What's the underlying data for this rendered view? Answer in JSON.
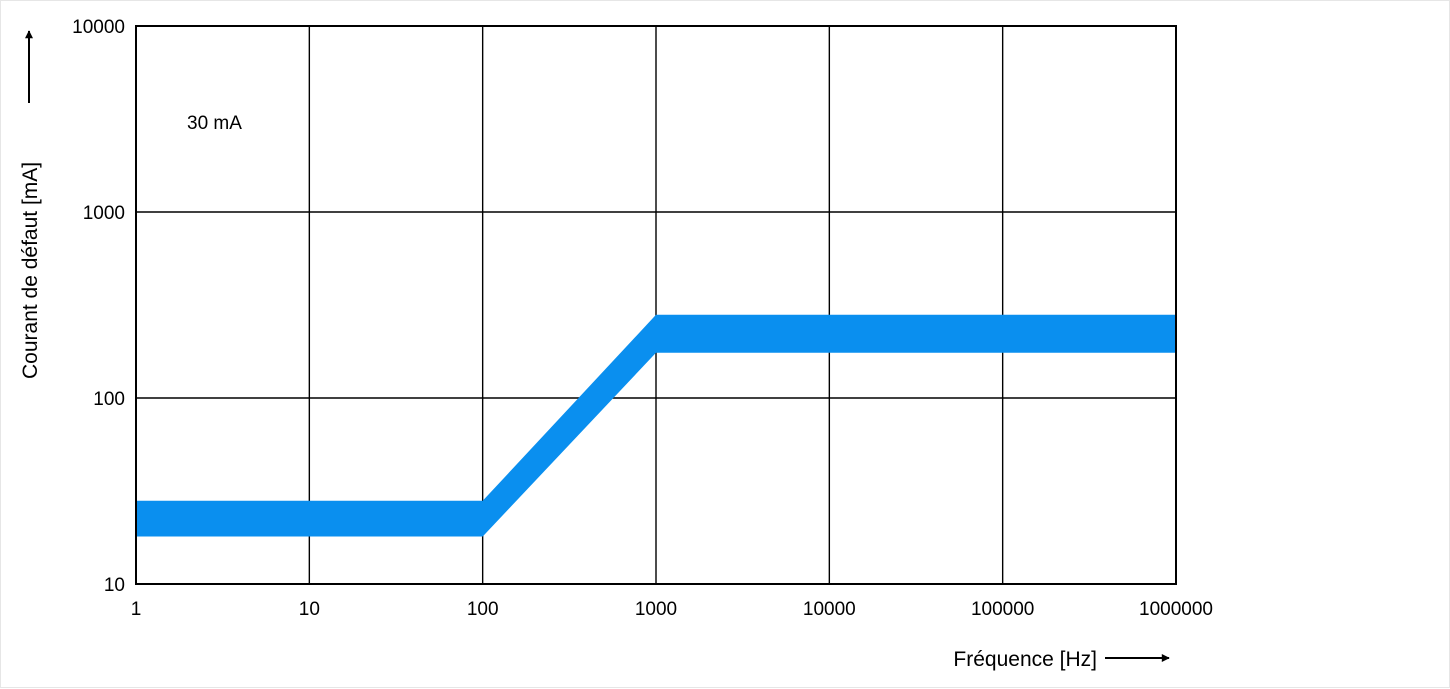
{
  "chart_data": {
    "type": "area",
    "x_scale": "log",
    "y_scale": "log",
    "xlim": [
      1,
      1000000
    ],
    "ylim": [
      10,
      10000
    ],
    "x_ticks": [
      "1",
      "10",
      "100",
      "1000",
      "10000",
      "100000",
      "1000000"
    ],
    "y_ticks": [
      "10",
      "100",
      "1000",
      "10000"
    ],
    "xlabel": "Fréquence [Hz]",
    "ylabel": "Courant de défaut  [mA]",
    "grid": true,
    "annotation": "30 mA",
    "band_color": "#0a8fef",
    "series": [
      {
        "x": [
          1,
          100,
          1000,
          1000000
        ],
        "lower": [
          18,
          18,
          175,
          175
        ],
        "upper": [
          28,
          28,
          280,
          280
        ]
      }
    ]
  }
}
